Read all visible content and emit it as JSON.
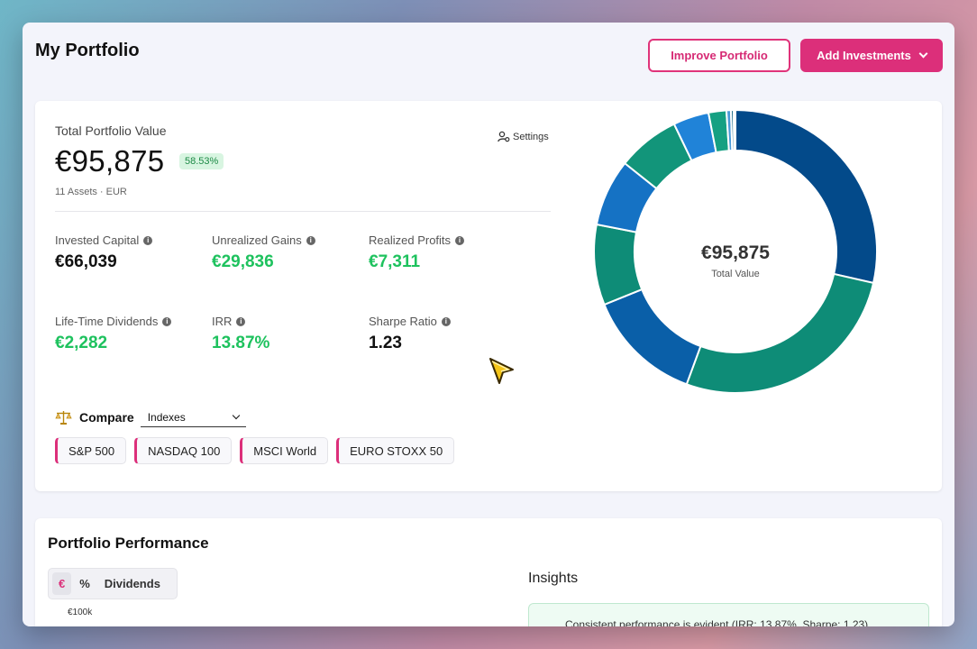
{
  "header": {
    "title": "My Portfolio",
    "improve_label": "Improve Portfolio",
    "add_label": "Add Investments"
  },
  "summary": {
    "label": "Total Portfolio Value",
    "value": "€95,875",
    "badge": "58.53%",
    "sub": "11 Assets · EUR",
    "settings_label": "Settings"
  },
  "metrics": [
    {
      "label": "Invested Capital",
      "value": "€66,039",
      "tone": "dark"
    },
    {
      "label": "Unrealized Gains",
      "value": "€29,836",
      "tone": "green"
    },
    {
      "label": "Realized Profits",
      "value": "€7,311",
      "tone": "green"
    },
    {
      "label": "Life-Time Dividends",
      "value": "€2,282",
      "tone": "green"
    },
    {
      "label": "IRR",
      "value": "13.87%",
      "tone": "green"
    },
    {
      "label": "Sharpe Ratio",
      "value": "1.23",
      "tone": "dark"
    }
  ],
  "compare": {
    "label": "Compare",
    "selected": "Indexes",
    "chips": [
      "S&P 500",
      "NASDAQ 100",
      "MSCI World",
      "EURO STOXX 50"
    ]
  },
  "donut": {
    "center_value": "€95,875",
    "center_label": "Total Value",
    "segments": [
      {
        "value": 28.0,
        "color": "#034a8a"
      },
      {
        "value": 26.5,
        "color": "#0e8c77"
      },
      {
        "value": 13.0,
        "color": "#0a5fa8"
      },
      {
        "value": 9.0,
        "color": "#0e8c77"
      },
      {
        "value": 7.5,
        "color": "#1572c4"
      },
      {
        "value": 7.0,
        "color": "#12957a"
      },
      {
        "value": 4.0,
        "color": "#2083d8"
      },
      {
        "value": 2.0,
        "color": "#15a082"
      },
      {
        "value": 0.5,
        "color": "#4a9ad8"
      },
      {
        "value": 0.3,
        "color": "#1b6a88"
      },
      {
        "value": 0.2,
        "color": "#0a4d7a"
      }
    ]
  },
  "performance": {
    "title": "Portfolio Performance",
    "segments": [
      "€",
      "%",
      "Dividends"
    ],
    "active_segment": "€",
    "y_top_label": "€100k",
    "insights_title": "Insights",
    "insight_text": "Consistent performance is evident (IRR: 13.87%, Sharpe: 1.23)"
  },
  "colors": {
    "accent": "#dc2f7a",
    "positive": "#1ec25e"
  }
}
